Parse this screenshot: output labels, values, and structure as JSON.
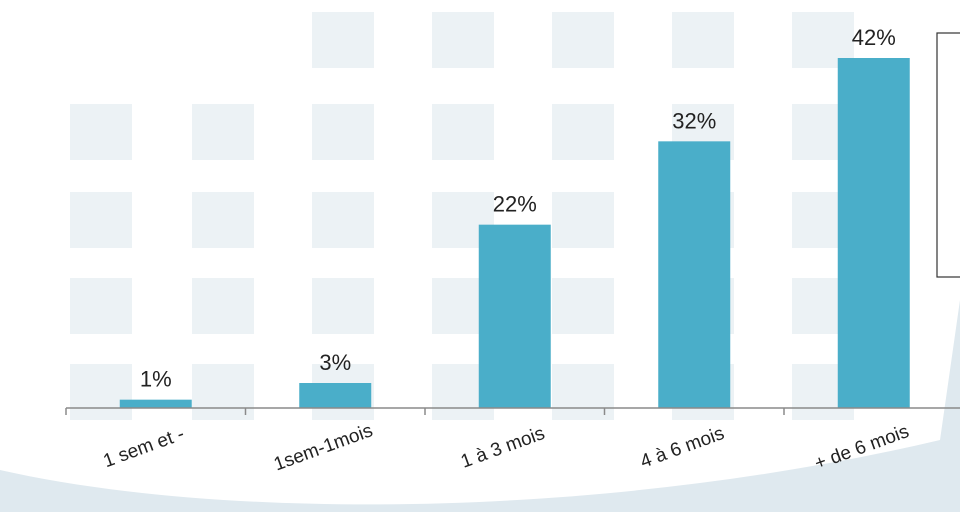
{
  "colors": {
    "bar": "#4aaec9",
    "tile": "#ecf2f5",
    "wave": "#dfe9ef",
    "axis": "#8a8a8a",
    "text": "#222222"
  },
  "chart_data": {
    "type": "bar",
    "categories": [
      "1 sem et -",
      "1sem-1mois",
      "1 à 3 mois",
      "4 à 6 mois",
      "+ de 6 mois"
    ],
    "values": [
      1,
      3,
      22,
      32,
      42
    ],
    "value_labels": [
      "1%",
      "3%",
      "22%",
      "32%",
      "42%"
    ],
    "unit": "%",
    "ylim": [
      0,
      42
    ],
    "grid": false,
    "legend": "none"
  }
}
